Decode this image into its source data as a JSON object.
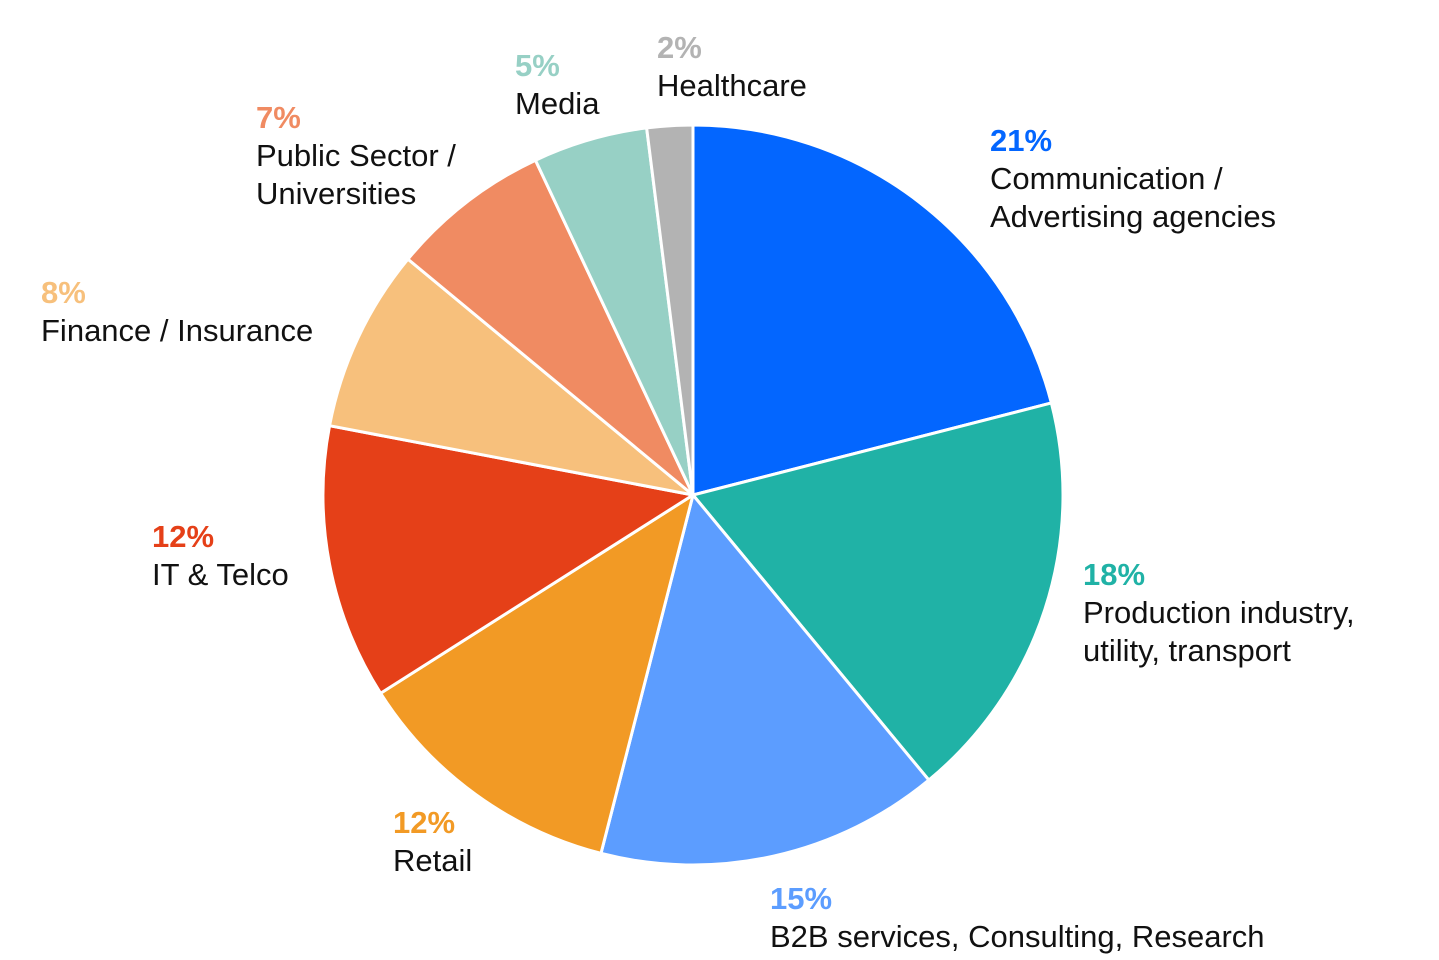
{
  "chart_data": {
    "type": "pie",
    "start_angle_deg": 0,
    "direction": "clockwise",
    "slices": [
      {
        "value": 21,
        "pct_label": "21%",
        "label_lines": [
          "Communication /",
          "Advertising agencies"
        ],
        "color": "#0366FF"
      },
      {
        "value": 18,
        "pct_label": "18%",
        "label_lines": [
          "Production industry,",
          "utility, transport"
        ],
        "color": "#20B2A6"
      },
      {
        "value": 15,
        "pct_label": "15%",
        "label_lines": [
          "B2B services, Consulting, Research"
        ],
        "color": "#5C9DFF"
      },
      {
        "value": 12,
        "pct_label": "12%",
        "label_lines": [
          "Retail"
        ],
        "color": "#F29A25"
      },
      {
        "value": 12,
        "pct_label": "12%",
        "label_lines": [
          "IT & Telco"
        ],
        "color": "#E54018"
      },
      {
        "value": 8,
        "pct_label": "8%",
        "label_lines": [
          "Finance / Insurance"
        ],
        "color": "#F7C07C"
      },
      {
        "value": 7,
        "pct_label": "7%",
        "label_lines": [
          "Public Sector /",
          "Universities"
        ],
        "color": "#F08B62"
      },
      {
        "value": 5,
        "pct_label": "5%",
        "label_lines": [
          "Media"
        ],
        "color": "#97D0C5"
      },
      {
        "value": 2,
        "pct_label": "2%",
        "label_lines": [
          "Healthcare"
        ],
        "color": "#B3B3B3"
      }
    ]
  }
}
